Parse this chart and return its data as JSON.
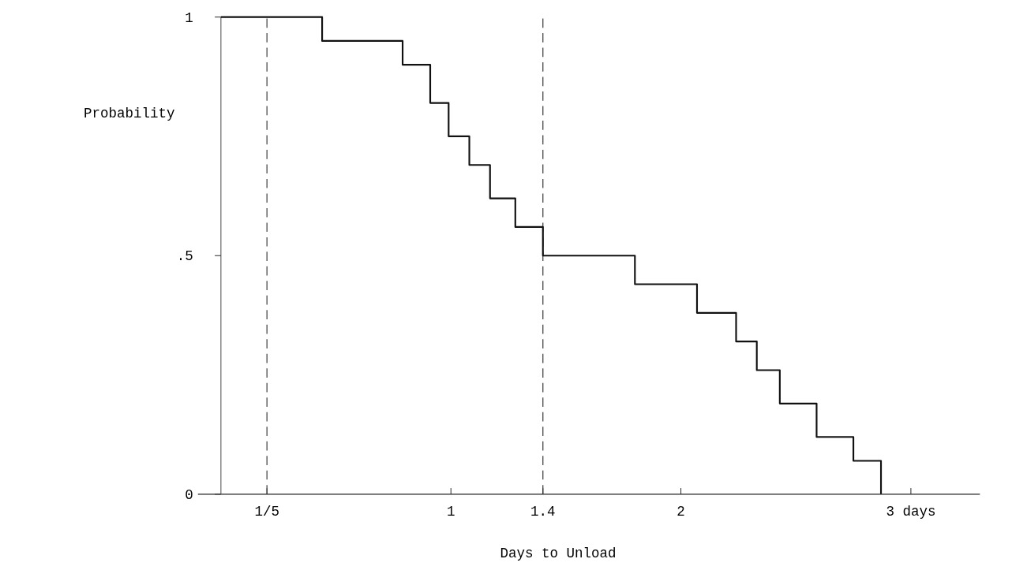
{
  "chart_data": {
    "type": "step",
    "xlabel": "Days to Unload",
    "ylabel": "Probability",
    "x": [
      0,
      0.44,
      0.79,
      0.91,
      0.99,
      1.08,
      1.17,
      1.28,
      1.4,
      1.8,
      2.07,
      2.24,
      2.33,
      2.43,
      2.59,
      2.75,
      2.87
    ],
    "values": [
      1,
      0.95,
      0.9,
      0.82,
      0.75,
      0.69,
      0.62,
      0.56,
      0.5,
      0.44,
      0.38,
      0.32,
      0.26,
      0.19,
      0.12,
      0.07,
      0
    ],
    "color": "#111111",
    "xlim": [
      -0.1,
      3.3
    ],
    "ylim": [
      0,
      1
    ],
    "xticks": [
      {
        "value": 0.2,
        "label": "1/5"
      },
      1,
      1.4,
      2,
      {
        "value": 3,
        "label": "3 days"
      }
    ],
    "yticks": [
      0,
      {
        "value": 0.5,
        "label": ".5"
      },
      1
    ],
    "ref_lines": [
      {
        "axis": "x",
        "value": 0.2,
        "line_style": "dashed",
        "color": "#333333"
      },
      {
        "axis": "x",
        "value": 1.4,
        "line_style": "dashed",
        "color": "#333333"
      }
    ],
    "grid": false
  }
}
